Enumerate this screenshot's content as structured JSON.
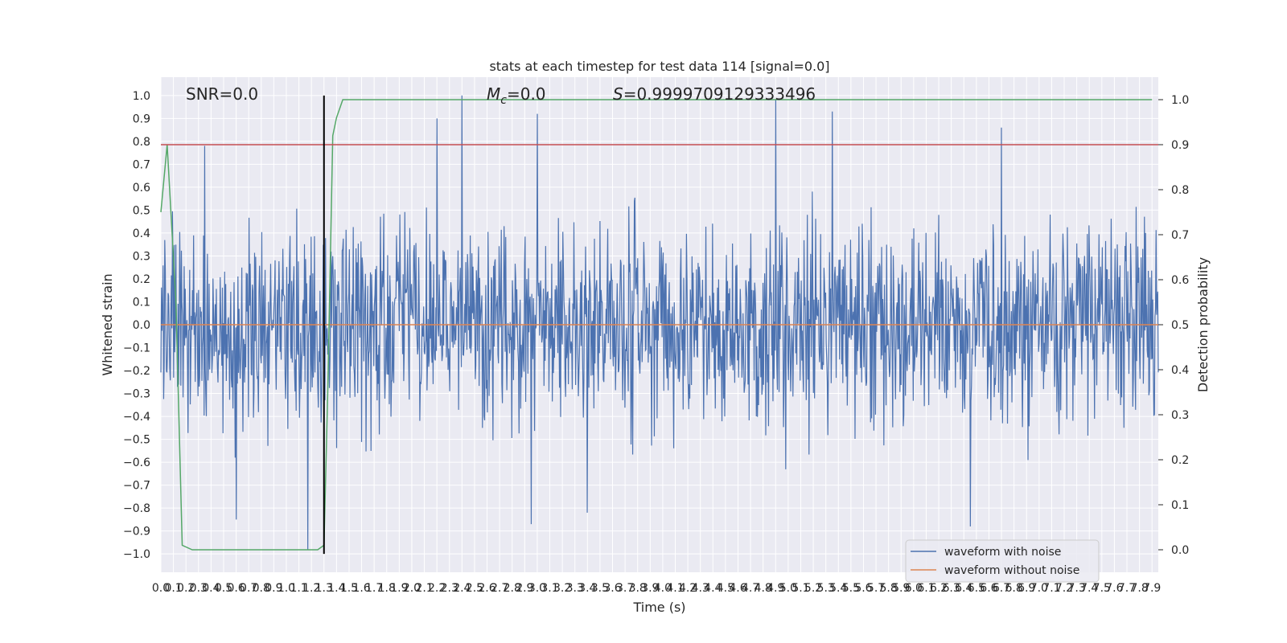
{
  "chart_data": {
    "type": "line",
    "title": "stats at each timestep for test data 114 [signal=0.0]",
    "xlabel": "Time (s)",
    "ylabel_left": "Whitened strain",
    "ylabel_right": "Detection probability",
    "xlim": [
      0.0,
      7.95
    ],
    "ylim_left": [
      -1.08,
      1.08
    ],
    "ylim_right": [
      -0.05,
      1.05
    ],
    "x_ticks": [
      0.0,
      0.1,
      0.2,
      0.3,
      0.4,
      0.5,
      0.6,
      0.7,
      0.8,
      0.9,
      1.0,
      1.1,
      1.2,
      1.3,
      1.4,
      1.5,
      1.6,
      1.7,
      1.8,
      1.9,
      2.0,
      2.1,
      2.2,
      2.3,
      2.4,
      2.5,
      2.6,
      2.7,
      2.8,
      2.9,
      3.0,
      3.1,
      3.2,
      3.3,
      3.4,
      3.5,
      3.6,
      3.7,
      3.8,
      3.9,
      4.0,
      4.1,
      4.2,
      4.3,
      4.4,
      4.5,
      4.6,
      4.7,
      4.8,
      4.9,
      5.0,
      5.1,
      5.2,
      5.3,
      5.4,
      5.5,
      5.6,
      5.7,
      5.8,
      5.9,
      6.0,
      6.1,
      6.2,
      6.3,
      6.4,
      6.5,
      6.6,
      6.7,
      6.8,
      6.9,
      7.0,
      7.1,
      7.2,
      7.3,
      7.4,
      7.5,
      7.6,
      7.7,
      7.8,
      7.9
    ],
    "y_ticks_left": [
      -1.0,
      -0.9,
      -0.8,
      -0.7,
      -0.6,
      -0.5,
      -0.4,
      -0.3,
      -0.2,
      -0.1,
      0.0,
      0.1,
      0.2,
      0.3,
      0.4,
      0.5,
      0.6,
      0.7,
      0.8,
      0.9,
      1.0
    ],
    "y_ticks_right": [
      0.0,
      0.1,
      0.2,
      0.3,
      0.4,
      0.5,
      0.6,
      0.7,
      0.8,
      0.9,
      1.0
    ],
    "grid": true,
    "legend_position": "lower-right",
    "series": [
      {
        "name": "waveform with noise",
        "axis": "left",
        "color": "#4c72b0",
        "kind": "noise-band",
        "mean": 0.0,
        "typical_half_range": 0.45,
        "peaks": [
          {
            "x": 2.4,
            "y": 1.0
          },
          {
            "x": 2.2,
            "y": 0.9
          },
          {
            "x": 3.0,
            "y": 0.92
          },
          {
            "x": 4.9,
            "y": 0.98
          },
          {
            "x": 5.35,
            "y": 0.93
          },
          {
            "x": 6.7,
            "y": 0.86
          },
          {
            "x": 0.35,
            "y": 0.78
          },
          {
            "x": 1.17,
            "y": -0.98
          },
          {
            "x": 6.45,
            "y": -0.88
          },
          {
            "x": 2.95,
            "y": -0.87
          },
          {
            "x": 0.6,
            "y": -0.85
          },
          {
            "x": 3.4,
            "y": -0.82
          }
        ]
      },
      {
        "name": "waveform without noise",
        "axis": "left",
        "color": "#dd8452",
        "x": [
          0.0,
          7.95
        ],
        "y": [
          0.0,
          0.0
        ]
      },
      {
        "axis": "right",
        "color": "#55a868",
        "x": [
          0.0,
          0.05,
          0.12,
          0.17,
          0.25,
          1.15,
          1.2,
          1.25,
          1.3,
          1.33,
          1.37,
          1.4,
          1.45,
          7.9
        ],
        "y": [
          0.75,
          0.9,
          0.55,
          0.01,
          0.0,
          0.0,
          0.0,
          0.0,
          0.01,
          0.35,
          0.92,
          0.96,
          1.0,
          1.0
        ]
      },
      {
        "axis": "right",
        "color": "#c44e52",
        "x": [
          0.0,
          7.95
        ],
        "y": [
          0.9,
          0.9
        ]
      }
    ],
    "vline": {
      "x": 1.3,
      "y_range": [
        -1.0,
        1.0
      ],
      "color": "#000000"
    },
    "annotations": {
      "snr": "SNR=0.0",
      "mc_symbol": "M",
      "mc_sub": "c",
      "mc_value": "=0.0",
      "s_symbol": "S",
      "s_value": "=0.9999709129333496"
    }
  }
}
